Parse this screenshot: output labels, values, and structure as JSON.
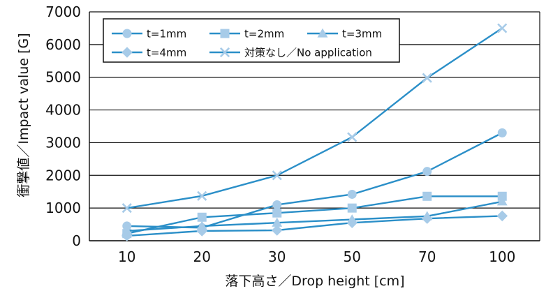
{
  "chart_data": {
    "type": "line",
    "title": "",
    "xlabel": "落下高さ／Drop height [cm]",
    "ylabel": "衝撃値／Impact value [G]",
    "categories": [
      "10",
      "20",
      "30",
      "50",
      "70",
      "100"
    ],
    "ylim": [
      0,
      7000
    ],
    "yticks": [
      "0",
      "1000",
      "2000",
      "3000",
      "4000",
      "5000",
      "6000",
      "7000"
    ],
    "grid": true,
    "legend_position": "top-left",
    "series": [
      {
        "name": "t=1mm",
        "marker": "circle",
        "color": "#2b8fc8",
        "marker_color": "#a7cbe8",
        "values": [
          450,
          400,
          1100,
          1420,
          2120,
          3300
        ]
      },
      {
        "name": "t=2mm",
        "marker": "square",
        "color": "#2b8fc8",
        "marker_color": "#a7cbe8",
        "values": [
          220,
          720,
          850,
          1000,
          1360,
          1360
        ]
      },
      {
        "name": "t=3mm",
        "marker": "triangle",
        "color": "#2b8fc8",
        "marker_color": "#a7cbe8",
        "values": [
          300,
          450,
          550,
          650,
          750,
          1200
        ]
      },
      {
        "name": "t=4mm",
        "marker": "diamond",
        "color": "#2b8fc8",
        "marker_color": "#a7cbe8",
        "values": [
          150,
          300,
          320,
          550,
          680,
          760
        ]
      },
      {
        "name": "対策なし／No application",
        "marker": "x",
        "color": "#2b8fc8",
        "marker_color": "#a7cbe8",
        "values": [
          1000,
          1370,
          2000,
          3170,
          4980,
          6500
        ]
      }
    ]
  }
}
